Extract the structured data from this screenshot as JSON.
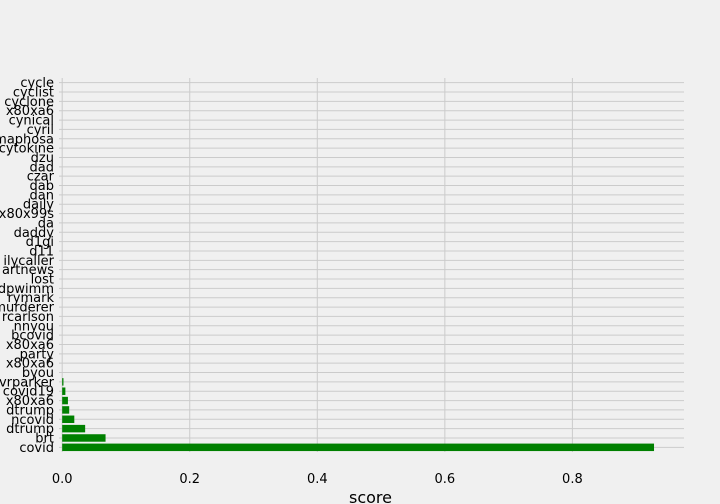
{
  "chart_data": {
    "type": "bar",
    "orientation": "horizontal",
    "title": "",
    "xlabel": "score",
    "ylabel": "",
    "xlim": [
      -0.005,
      0.975
    ],
    "x_ticks": [
      0.0,
      0.2,
      0.4,
      0.6,
      0.8
    ],
    "x_tick_labels": [
      "0.0",
      "0.2",
      "0.4",
      "0.6",
      "0.8"
    ],
    "grid": true,
    "bar_color": "#008000",
    "categories": [
      "covid",
      "brt",
      "dtrump",
      "ncovid",
      "dtrump",
      "x80xa6",
      "covid19",
      "vrparker",
      "byou",
      "x80xa6",
      "party",
      "x80xa6",
      "bcovid",
      "nnyou",
      "rcarlson",
      "murderer",
      "rymark",
      "dpwimm",
      "lost",
      "artnews",
      "ilycaller",
      "d11",
      "d1gi",
      "daddy",
      "da",
      "x80x99s",
      "daily",
      "dan",
      "dab",
      "czar",
      "dad",
      "dzu",
      "cytokine",
      "maphosa",
      "cyril",
      "cynical",
      "x80xa6",
      "cyclone",
      "cyclist",
      "cycle"
    ],
    "values": [
      0.928,
      0.068,
      0.036,
      0.019,
      0.011,
      0.009,
      0.005,
      0.002,
      0.0,
      0.0,
      0.0,
      0.0,
      0.0,
      0.0,
      0.0,
      0.0,
      0.0,
      0.0,
      0.0,
      0.0,
      0.0,
      0.0,
      0.0,
      0.0,
      0.0,
      0.0,
      0.0,
      0.0,
      0.0,
      0.0,
      0.0,
      0.0,
      0.0,
      0.0,
      0.0,
      0.0,
      0.0,
      0.0,
      0.0,
      0.0
    ]
  }
}
